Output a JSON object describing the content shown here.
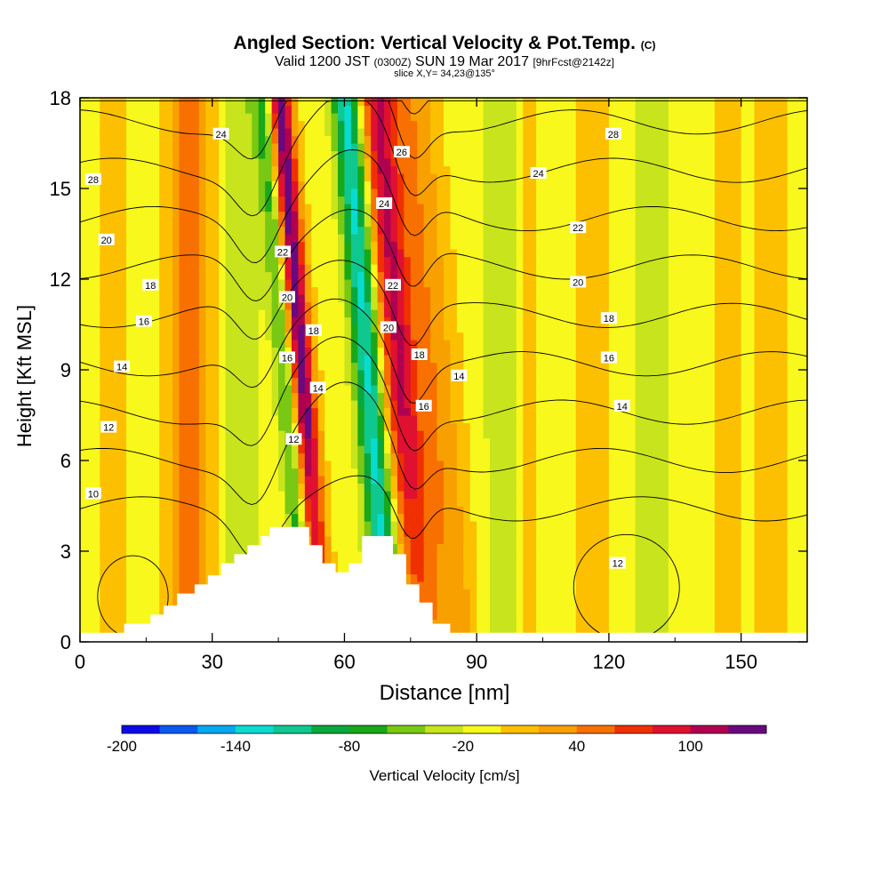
{
  "header": {
    "title_main": "Angled Section: Vertical Velocity & Pot.Temp.",
    "title_tag": "(C)",
    "valid_prefix": "Valid 1200 JST",
    "valid_zulu": "(0300Z)",
    "valid_date": "SUN 19 Mar 2017",
    "valid_fcst": "[9hrFcst@2142z]",
    "slice": "slice X,Y= 34,23@135°"
  },
  "chart_data": {
    "type": "heatmap",
    "title": "Angled Section: Vertical Velocity & Pot.Temp.",
    "xlabel": "Distance [nm]",
    "ylabel": "Height [Kft MSL]",
    "xlim": [
      0,
      165
    ],
    "ylim": [
      0,
      18
    ],
    "x_ticks": [
      0,
      30,
      60,
      90,
      120,
      150
    ],
    "y_ticks": [
      0,
      3,
      6,
      9,
      12,
      15,
      18
    ],
    "colorbar": {
      "label": "Vertical Velocity [cm/s]",
      "tick_labels": [
        -200,
        -140,
        -80,
        -20,
        40,
        100
      ],
      "levels": [
        -200,
        -180,
        -160,
        -140,
        -120,
        -100,
        -80,
        -60,
        -40,
        -20,
        0,
        20,
        40,
        60,
        80,
        100,
        120
      ],
      "colors": [
        "#0b0be8",
        "#0a5af0",
        "#06a8f2",
        "#08dcd0",
        "#0fc890",
        "#0aa83c",
        "#18a818",
        "#78c814",
        "#c8e41c",
        "#f8f81c",
        "#fce800",
        "#f8c000",
        "#f88c00",
        "#f05000",
        "#e01818",
        "#b40038",
        "#7a0060"
      ],
      "band_colors": [
        "#0b0be8",
        "#0a5af0",
        "#06a8f2",
        "#08dcd0",
        "#0fc890",
        "#0aa83c",
        "#18a818",
        "#78c814",
        "#c8e41c",
        "#f8f81c",
        "#fcc000",
        "#f8a000",
        "#f87000",
        "#f03000",
        "#e01030",
        "#b00050",
        "#6a0880"
      ]
    },
    "velocity_features": [
      {
        "x": 25,
        "width": 5,
        "w": 55
      },
      {
        "x": 37,
        "width": 4,
        "w": -30
      },
      {
        "x": 48,
        "width": 2.2,
        "w": -60
      },
      {
        "x": 52,
        "width": 2.6,
        "w": 140
      },
      {
        "x": 67,
        "width": 3.2,
        "w": -120
      },
      {
        "x": 74,
        "width": 4.2,
        "w": 110
      },
      {
        "x": 82,
        "width": 5,
        "w": 45
      },
      {
        "x": 96,
        "width": 4,
        "w": -30
      },
      {
        "x": 101,
        "width": 2,
        "w": 25
      },
      {
        "x": 116,
        "width": 3,
        "w": 28
      },
      {
        "x": 130,
        "width": 4,
        "w": -25
      },
      {
        "x": 147,
        "width": 3,
        "w": 22
      },
      {
        "x": 157,
        "width": 5,
        "w": 15
      },
      {
        "x": 8,
        "width": 6,
        "w": 10
      }
    ],
    "isentropes_K": [
      10,
      12,
      14,
      16,
      18,
      20,
      22,
      24,
      26,
      28
    ],
    "isentrope_labels": [
      {
        "text": "10",
        "x": 3,
        "y": 4.9
      },
      {
        "text": "12",
        "x": 6.5,
        "y": 7.1
      },
      {
        "text": "14",
        "x": 9.5,
        "y": 9.1
      },
      {
        "text": "16",
        "x": 14.5,
        "y": 10.6
      },
      {
        "text": "18",
        "x": 16,
        "y": 11.8
      },
      {
        "text": "20",
        "x": 6,
        "y": 13.3
      },
      {
        "text": "28",
        "x": 3,
        "y": 15.3
      },
      {
        "text": "24",
        "x": 32,
        "y": 16.8
      },
      {
        "text": "22",
        "x": 46,
        "y": 12.9
      },
      {
        "text": "20",
        "x": 47,
        "y": 11.4
      },
      {
        "text": "18",
        "x": 53,
        "y": 10.3
      },
      {
        "text": "16",
        "x": 47,
        "y": 9.4
      },
      {
        "text": "14",
        "x": 54,
        "y": 8.4
      },
      {
        "text": "12",
        "x": 48.5,
        "y": 6.7
      },
      {
        "text": "26",
        "x": 73,
        "y": 16.2
      },
      {
        "text": "24",
        "x": 69,
        "y": 14.5
      },
      {
        "text": "22",
        "x": 71,
        "y": 11.8
      },
      {
        "text": "20",
        "x": 70,
        "y": 10.4
      },
      {
        "text": "18",
        "x": 77,
        "y": 9.5
      },
      {
        "text": "16",
        "x": 78,
        "y": 7.8
      },
      {
        "text": "14",
        "x": 86,
        "y": 8.8
      },
      {
        "text": "28",
        "x": 121,
        "y": 16.8
      },
      {
        "text": "24",
        "x": 104,
        "y": 15.5
      },
      {
        "text": "22",
        "x": 113,
        "y": 13.7
      },
      {
        "text": "20",
        "x": 113,
        "y": 11.9
      },
      {
        "text": "18",
        "x": 120,
        "y": 10.7
      },
      {
        "text": "16",
        "x": 120,
        "y": 9.4
      },
      {
        "text": "14",
        "x": 123,
        "y": 7.8
      },
      {
        "text": "12",
        "x": 122,
        "y": 2.6
      }
    ],
    "terrain": [
      [
        0,
        0.3
      ],
      [
        10,
        0.3
      ],
      [
        10,
        0.6
      ],
      [
        16,
        0.6
      ],
      [
        16,
        0.9
      ],
      [
        19,
        0.9
      ],
      [
        19,
        1.2
      ],
      [
        22,
        1.2
      ],
      [
        22,
        1.6
      ],
      [
        26,
        1.6
      ],
      [
        26,
        1.9
      ],
      [
        29,
        1.9
      ],
      [
        29,
        2.2
      ],
      [
        32,
        2.2
      ],
      [
        32,
        2.6
      ],
      [
        35,
        2.6
      ],
      [
        35,
        2.9
      ],
      [
        38,
        2.9
      ],
      [
        38,
        3.2
      ],
      [
        41,
        3.2
      ],
      [
        41,
        3.5
      ],
      [
        43,
        3.5
      ],
      [
        43,
        3.8
      ],
      [
        52,
        3.8
      ],
      [
        52,
        3.2
      ],
      [
        55,
        3.2
      ],
      [
        55,
        2.6
      ],
      [
        58,
        2.6
      ],
      [
        58,
        2.3
      ],
      [
        61,
        2.3
      ],
      [
        61,
        2.6
      ],
      [
        64,
        2.6
      ],
      [
        64,
        3.5
      ],
      [
        71,
        3.5
      ],
      [
        71,
        2.9
      ],
      [
        74,
        2.9
      ],
      [
        74,
        1.9
      ],
      [
        77,
        1.9
      ],
      [
        77,
        1.3
      ],
      [
        80,
        1.3
      ],
      [
        80,
        0.6
      ],
      [
        84,
        0.6
      ],
      [
        84,
        0.3
      ],
      [
        165,
        0.3
      ]
    ]
  }
}
